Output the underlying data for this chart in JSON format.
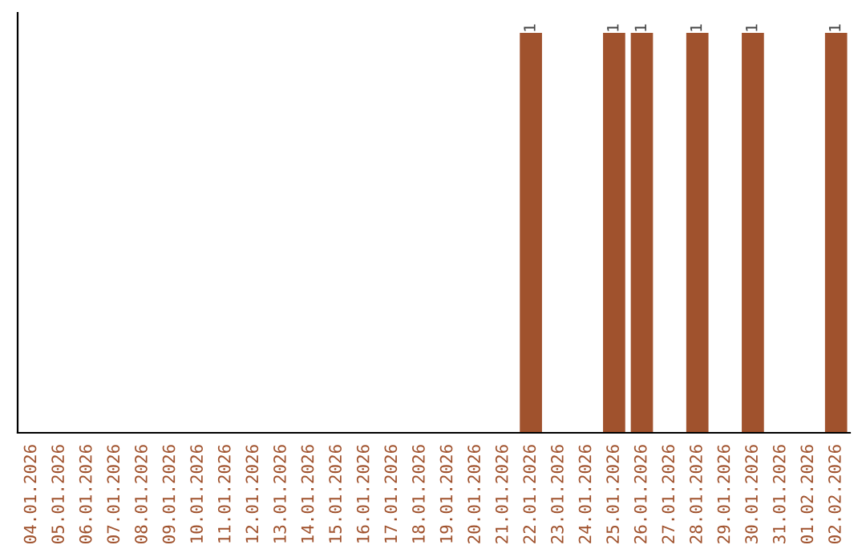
{
  "chart_data": {
    "type": "bar",
    "color": "#a0522d",
    "categories": [
      "04.01.2026",
      "05.01.2026",
      "06.01.2026",
      "07.01.2026",
      "08.01.2026",
      "09.01.2026",
      "10.01.2026",
      "11.01.2026",
      "12.01.2026",
      "13.01.2026",
      "14.01.2026",
      "15.01.2026",
      "16.01.2026",
      "17.01.2026",
      "18.01.2026",
      "19.01.2026",
      "20.01.2026",
      "21.01.2026",
      "22.01.2026",
      "23.01.2026",
      "24.01.2026",
      "25.01.2026",
      "26.01.2026",
      "27.01.2026",
      "28.01.2026",
      "29.01.2026",
      "30.01.2026",
      "31.01.2026",
      "01.02.2026",
      "02.02.2026"
    ],
    "values": [
      null,
      null,
      null,
      null,
      null,
      null,
      null,
      null,
      null,
      null,
      null,
      null,
      null,
      null,
      null,
      null,
      null,
      null,
      1,
      null,
      null,
      1,
      1,
      null,
      1,
      null,
      1,
      null,
      null,
      1
    ],
    "value_labels": [
      null,
      null,
      null,
      null,
      null,
      null,
      null,
      null,
      null,
      null,
      null,
      null,
      null,
      null,
      null,
      null,
      null,
      null,
      "1",
      null,
      null,
      "1",
      "1",
      null,
      "1",
      null,
      "1",
      null,
      null,
      "1"
    ],
    "grid": false,
    "legend": false
  }
}
